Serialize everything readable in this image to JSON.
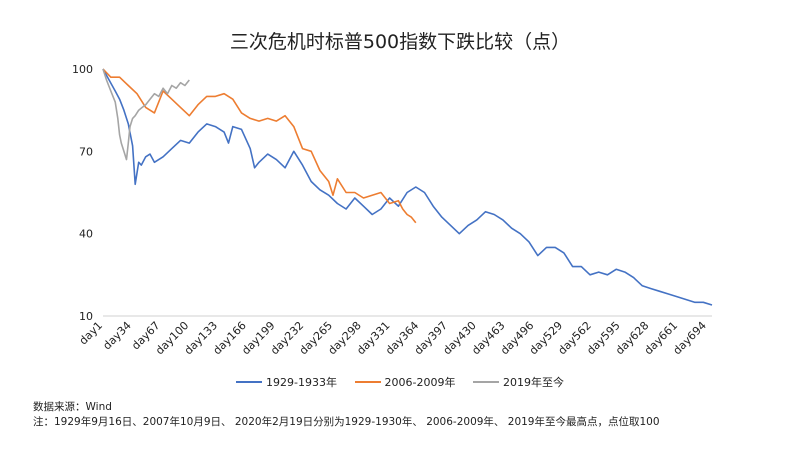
{
  "chart_data": {
    "type": "line",
    "title": "三次危机时标普500指数下跌比较（点）",
    "xlabel": "",
    "ylabel": "",
    "ylim": [
      10,
      100
    ],
    "yticks": [
      10,
      40,
      70,
      100
    ],
    "xlim": [
      1,
      700
    ],
    "xticks": [
      "day1",
      "day34",
      "day67",
      "day100",
      "day133",
      "day166",
      "day199",
      "day232",
      "day265",
      "day298",
      "day331",
      "day364",
      "day397",
      "day430",
      "day463",
      "day496",
      "day529",
      "day562",
      "day595",
      "day628",
      "day661",
      "day694"
    ],
    "grid": false,
    "legend_position": "bottom",
    "series": [
      {
        "name": "1929-1933年",
        "color": "#4472C4",
        "x": [
          1,
          8,
          15,
          20,
          25,
          30,
          35,
          38,
          42,
          45,
          50,
          55,
          60,
          70,
          80,
          90,
          100,
          110,
          120,
          130,
          140,
          145,
          150,
          160,
          170,
          175,
          180,
          190,
          200,
          210,
          220,
          230,
          240,
          250,
          260,
          270,
          280,
          290,
          300,
          310,
          320,
          330,
          340,
          350,
          360,
          370,
          380,
          390,
          400,
          410,
          420,
          430,
          440,
          450,
          460,
          470,
          480,
          490,
          500,
          510,
          520,
          530,
          540,
          550,
          560,
          570,
          580,
          590,
          600,
          610,
          620,
          630,
          640,
          650,
          660,
          670,
          680,
          690,
          700
        ],
        "y": [
          100,
          96,
          92,
          89,
          85,
          80,
          72,
          58,
          66,
          65,
          68,
          69,
          66,
          68,
          71,
          74,
          73,
          77,
          80,
          79,
          77,
          73,
          79,
          78,
          71,
          64,
          66,
          69,
          67,
          64,
          70,
          65,
          59,
          56,
          54,
          51,
          49,
          53,
          50,
          47,
          49,
          53,
          50,
          55,
          57,
          55,
          50,
          46,
          43,
          40,
          43,
          45,
          48,
          47,
          45,
          42,
          40,
          37,
          32,
          35,
          35,
          33,
          28,
          28,
          25,
          26,
          25,
          27,
          26,
          24,
          21,
          20,
          19,
          18,
          17,
          16,
          15,
          15,
          14
        ]
      },
      {
        "name": "2006-2009年",
        "color": "#ED7D31",
        "x": [
          1,
          10,
          20,
          30,
          40,
          50,
          60,
          70,
          80,
          90,
          100,
          110,
          120,
          130,
          140,
          150,
          160,
          170,
          180,
          190,
          200,
          210,
          220,
          230,
          240,
          250,
          260,
          265,
          270,
          280,
          290,
          300,
          310,
          320,
          330,
          340,
          345,
          350,
          355,
          360
        ],
        "y": [
          100,
          97,
          97,
          94,
          91,
          86,
          84,
          92,
          89,
          86,
          83,
          87,
          90,
          90,
          91,
          89,
          84,
          82,
          81,
          82,
          81,
          83,
          79,
          71,
          70,
          63,
          59,
          54,
          60,
          55,
          55,
          53,
          54,
          55,
          51,
          52,
          49,
          47,
          46,
          44
        ]
      },
      {
        "name": "2019年至今",
        "color": "#A5A5A5",
        "x": [
          1,
          5,
          10,
          15,
          18,
          20,
          22,
          25,
          28,
          30,
          32,
          35,
          38,
          42,
          46,
          50,
          55,
          60,
          65,
          70,
          75,
          80,
          85,
          90,
          95,
          100
        ],
        "y": [
          100,
          96,
          92,
          88,
          82,
          76,
          73,
          70,
          67,
          73,
          79,
          82,
          83,
          85,
          86,
          87,
          89,
          91,
          90,
          93,
          91,
          94,
          93,
          95,
          94,
          96
        ]
      }
    ]
  },
  "footnotes": {
    "source": "数据来源：Wind",
    "note": "注：1929年9月16日、2007年10月9日、 2020年2月19日分别为1929-1930年、 2006-2009年、 2019年至今最高点，点位取100"
  }
}
